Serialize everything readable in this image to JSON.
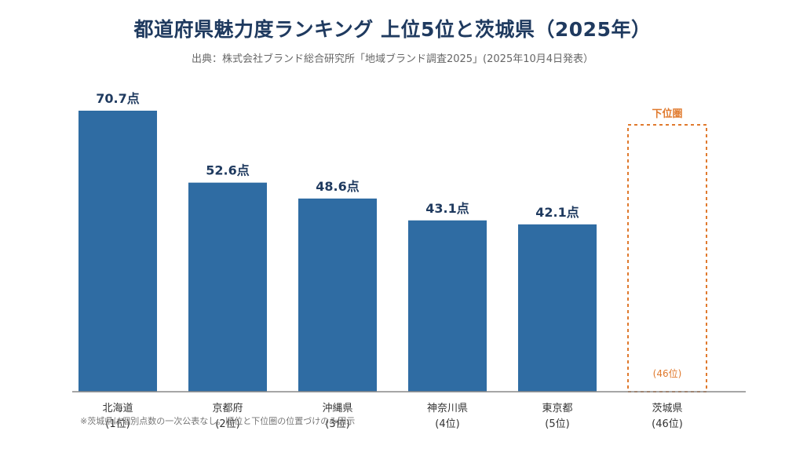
{
  "header": {
    "title": "都道府県魅力度ランキング 上位5位と茨城県（2025年）",
    "subtitle": "出典：株式会社ブランド総合研究所「地域ブランド調査2025」(2025年10月4日発表）"
  },
  "colors": {
    "bar": "#2f6ca3",
    "value_label": "#1f3a5f",
    "highlight": "#e07a2e",
    "axis": "#888888",
    "category_label": "#333333"
  },
  "chart_data": {
    "type": "bar",
    "categories": [
      "北海道",
      "京都府",
      "沖縄県",
      "神奈川県",
      "東京都",
      "茨城県"
    ],
    "rank_labels": [
      "(1位)",
      "(2位)",
      "(3位)",
      "(4位)",
      "(5位)",
      "(46位)"
    ],
    "values": [
      70.7,
      52.6,
      48.6,
      43.1,
      42.1,
      null
    ],
    "value_labels": [
      "70.7点",
      "52.6点",
      "48.6点",
      "43.1点",
      "42.1点",
      ""
    ],
    "ylim": [
      0,
      75
    ],
    "grid": false,
    "legend": "none",
    "placeholder": {
      "category_index": 5,
      "label": "下位圏",
      "inner_label": "(46位)"
    }
  },
  "footnote": "※茨城県は個別点数の一次公表なし。順位と下位圏の位置づけのみ図示"
}
